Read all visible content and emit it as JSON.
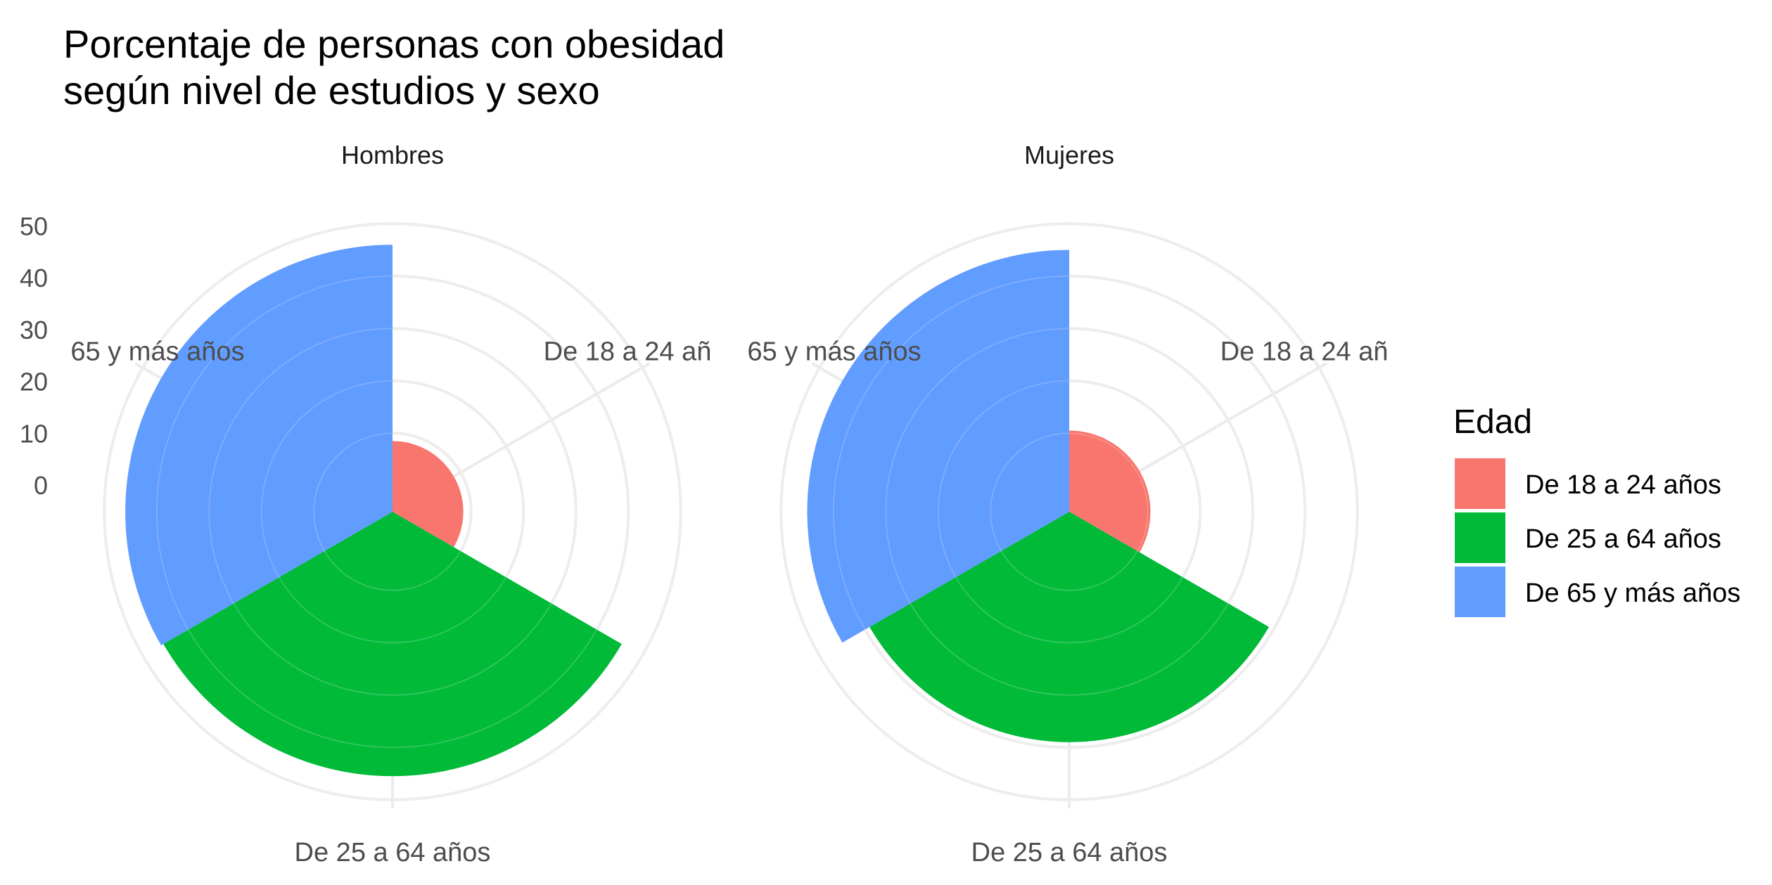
{
  "title_lines": [
    "Porcentaje de personas con obesidad",
    "según nivel de estudios y sexo"
  ],
  "chart_data": {
    "type": "polar-bar",
    "title": "Porcentaje de personas con obesidad\nsegún nivel de estudios y sexo",
    "radial_ticks": [
      "0",
      "10",
      "20",
      "30",
      "40",
      "50"
    ],
    "ylim": [
      0,
      55
    ],
    "grid": true,
    "categories": [
      "De 18 a 24 años",
      "De 25 a 64 años",
      "De 65 y más años"
    ],
    "category_labels": [
      "De 18 a 24 añ",
      "De 25 a 64 años",
      "65 y más años"
    ],
    "facets": [
      {
        "name": "Hombres",
        "values": [
          13.5,
          50.5,
          51.0
        ]
      },
      {
        "name": "Mujeres",
        "values": [
          15.5,
          44.0,
          50.0
        ]
      }
    ],
    "legend": {
      "title": "Edad",
      "position": "right",
      "items": [
        {
          "label": "De 18 a 24 años",
          "color": "#F8766D"
        },
        {
          "label": "De 25 a 64 años",
          "color": "#00BA38"
        },
        {
          "label": "De 65 y más años",
          "color": "#619CFF"
        }
      ]
    }
  }
}
